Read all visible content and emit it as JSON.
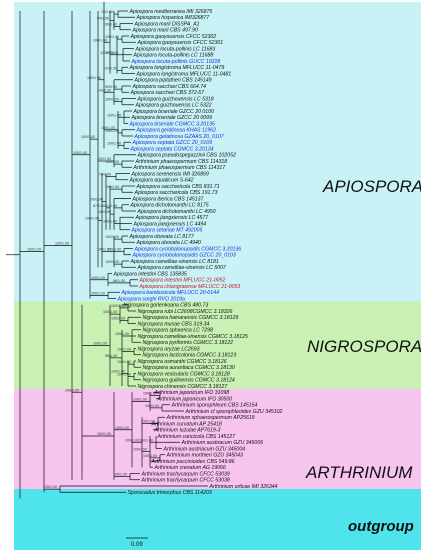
{
  "clades": {
    "apiospora": "APIOSPORA",
    "nigrospora": "NIGROSPORA",
    "arthrinium": "ARTHRINIUM",
    "outgroup": "outgroup"
  },
  "colors": {
    "apiospora_band": "#c8f2f6",
    "nigrospora_band": "#c9f1b4",
    "arthrinium_band": "#f7c3ef",
    "outgroup_band": "#4fe3ec",
    "new_taxa_blue": "#1a2fd6",
    "new_taxa_red": "#c4161c",
    "black": "#111111"
  },
  "scale_bar": "0.09",
  "taxa": [
    {
      "name": "Apiospora mediterranea IMI 326875",
      "color": "black"
    },
    {
      "name": "Apiospora hispanica IMI326877",
      "color": "black"
    },
    {
      "name": "Apiospora marii DiSSPA_A1",
      "color": "black"
    },
    {
      "name": "Apiospora marii CBS 497.90",
      "color": "black"
    },
    {
      "name": "Apiospora gaoyouensis CFCC 52302",
      "color": "black"
    },
    {
      "name": "Apiospora gaoyouensis CFCC 52301",
      "color": "black"
    },
    {
      "name": "Apiospora locuta-pollinis LC 11683",
      "color": "black"
    },
    {
      "name": "Apiospora locuta-pollinis LC 11688",
      "color": "black"
    },
    {
      "name": "Apiospora locuta-pollinis GUCC 10228",
      "color": "blue"
    },
    {
      "name": "Apiospora longistroma MFLUCC 11-0479",
      "color": "black"
    },
    {
      "name": "Apiospora longistroma MFLUCC 11-0481",
      "color": "black"
    },
    {
      "name": "Apiospora piptatheri CBS 145149",
      "color": "black"
    },
    {
      "name": "Apiospora sacchari CBS 664.74",
      "color": "black"
    },
    {
      "name": "Apiospora sacchari CBS 372.67",
      "color": "black"
    },
    {
      "name": "Apiospora guizhouensis LC 5318",
      "color": "black"
    },
    {
      "name": "Apiospora guizhouensis LC 5322",
      "color": "black"
    },
    {
      "name": "Apiospora biseriale GZCC 20 0100",
      "color": "black"
    },
    {
      "name": "Apiospora biseriale GZCC 20 0099",
      "color": "black"
    },
    {
      "name": "Apiospora biseriale CGMCC 3.20135",
      "color": "blue"
    },
    {
      "name": "Apiospora gelatinosa KHAS 11962",
      "color": "blue"
    },
    {
      "name": "Apiospora gelatinosa GZAAS 20_0107",
      "color": "blue"
    },
    {
      "name": "Apiospora septata GZCC 20_0109",
      "color": "blue"
    },
    {
      "name": "Apiospora septata CGMCC 3.20134",
      "color": "blue"
    },
    {
      "name": "Apiospora pseudospegazzinii CBS 102052",
      "color": "black"
    },
    {
      "name": "Arthrinium phaeospermum CBS 114318",
      "color": "black"
    },
    {
      "name": "Arthrinium phaeospermum CBS 114317",
      "color": "black"
    },
    {
      "name": "Apiospora serenensis IMI 326869",
      "color": "black"
    },
    {
      "name": "Apiospora aquaticum S-642",
      "color": "black"
    },
    {
      "name": "Apiospora saccharicola CBS 831.71",
      "color": "black"
    },
    {
      "name": "Apiospora saccharicola CBS 191.73",
      "color": "black"
    },
    {
      "name": "Apiospora iberica CBS 145137",
      "color": "black"
    },
    {
      "name": "Apiospora dichotomanthi LC 8175",
      "color": "black"
    },
    {
      "name": "Apiospora dichotomanthi LC 4950",
      "color": "black"
    },
    {
      "name": "Apiospora jiangxiensis LC 4577",
      "color": "black"
    },
    {
      "name": "Apiospora jiangxiensis LC 4494",
      "color": "black"
    },
    {
      "name": "Apiospora setariae MT 492005",
      "color": "blue"
    },
    {
      "name": "Apiospora obovata LC 8177",
      "color": "black"
    },
    {
      "name": "Apiospora obovata LC 4940",
      "color": "black"
    },
    {
      "name": "Apiospora cyclobalanopsidis CGMCC 3.20136",
      "color": "blue"
    },
    {
      "name": "Apiospora cyclobalanopsidis GZCC 20_0103",
      "color": "blue"
    },
    {
      "name": "Apiospora camelliae-sinensis LC 8181",
      "color": "black"
    },
    {
      "name": "Apiospora camelliae-sinensis LC 5007",
      "color": "black"
    },
    {
      "name": "Apiospora intestini CBS 135835",
      "color": "black"
    },
    {
      "name": "Apiospora intestini MFLUCC 21-0052",
      "color": "red"
    },
    {
      "name": "Apiospora chiangraiense MFLUCC 21-0053",
      "color": "red"
    },
    {
      "name": "Apiospora bambusicola MFLUCC 20-0144",
      "color": "blue"
    },
    {
      "name": "Apiospora sorghi RVO 2019a",
      "color": "blue"
    },
    {
      "name": "Nigrospora gorlenkoana CBS 480.73",
      "color": "black"
    },
    {
      "name": "Nigrospora rubi LC2698CGMCC 3.18326",
      "color": "black"
    },
    {
      "name": "Nigrospora hainanensis CGMCC 3.18129",
      "color": "black"
    },
    {
      "name": "Nigrospora musae CBS 319.34",
      "color": "black"
    },
    {
      "name": "Nigrospora sphaerica LC 7298",
      "color": "black"
    },
    {
      "name": "Nigrospora camelliae-sinensis CGMCC 3.18125",
      "color": "black"
    },
    {
      "name": "Nigrospora pyriformis CGMCC 3.18122",
      "color": "black"
    },
    {
      "name": "Nigrospora oryzae LC2693",
      "color": "black"
    },
    {
      "name": "Nigrospora lacticolonia CGMCC 3.18123",
      "color": "black"
    },
    {
      "name": "Nigrospora osmanthi CGMCC 3.18126",
      "color": "black"
    },
    {
      "name": "Nigrospora aurantiaca CGMCC 3.18130",
      "color": "black"
    },
    {
      "name": "Nigrospora vesicularis CGMCC 3.18128",
      "color": "black"
    },
    {
      "name": "Nigrospora guilinensis CGMCC 3.18124",
      "color": "black"
    },
    {
      "name": "Nigrospora chinensis CGMCC 3.18127",
      "color": "black"
    },
    {
      "name": "Arthrinium japonicum IFO 31098",
      "color": "black"
    },
    {
      "name": "Arthrinium japonicum IFO 30500",
      "color": "black"
    },
    {
      "name": "Arthrinium sporophleum CBS 145154",
      "color": "black"
    },
    {
      "name": "Arthrinium cf sporophleoides GZU 345102",
      "color": "black"
    },
    {
      "name": "Arthrinium sphaerospermum AP25619",
      "color": "black"
    },
    {
      "name": "Arthrinium curvatum AP 25418",
      "color": "black"
    },
    {
      "name": "Arthrinium luzulae AP7619-3",
      "color": "black"
    },
    {
      "name": "Arthrinium caricicola CBS 145127",
      "color": "black"
    },
    {
      "name": "Arthrinium austriacum GZU 345006",
      "color": "black"
    },
    {
      "name": "Arthrinium austriacum GZU 345004",
      "color": "black"
    },
    {
      "name": "Arthrinium morthieri GZU 345043",
      "color": "black"
    },
    {
      "name": "Arthrinium puccinioides CBS 549.86",
      "color": "black"
    },
    {
      "name": "Arthrinium crenatum AG 19066",
      "color": "black"
    },
    {
      "name": "Arthrinium trachycarpum CFCC 53039",
      "color": "black"
    },
    {
      "name": "Arthrinium trachycarpum CFCC 53038",
      "color": "black"
    },
    {
      "name": "Arthrinium urticae IMI 326344",
      "color": "black"
    },
    {
      "name": "Sporocadus trimorphus CBS 114203",
      "color": "black"
    }
  ],
  "supports": [
    "78/1.00",
    "100/1.00",
    "94/1.00",
    "100/1.00",
    "99/1.00",
    "97/1.00",
    "100/1.00",
    "100/1.00",
    "99/0.99",
    "100/1.00",
    "100/1.00",
    "100/1.00",
    "100/1.00",
    "100/1.00",
    "100/1.00",
    "100/1.00",
    "100/1.00",
    "100/1.00",
    "78/1.00",
    "100/1.00",
    "81/0.99",
    "100/1.00",
    "100/1.00",
    "87/1.00",
    "100/1.00",
    "100/1.00",
    "100/1.00",
    "100/1.00",
    "100/1.00",
    "100/1.00",
    "100/1.00",
    "86/1.00",
    "100/1.00",
    "100/1.00",
    "100/1.00",
    "100/1.00",
    "100/1.00",
    "100/1.00",
    "100/1.00",
    "100/1.00",
    "100/1.00",
    "100/1.00",
    "100/1.00",
    "98/1.00",
    "100/1.00",
    "100/1.00",
    "100/1.00",
    "100/1.00",
    "100/1.00",
    "100/1.00",
    "100/1.00",
    "100/1.00",
    "100/1.00",
    "100/1.00",
    "100/1.00",
    "100/1.00",
    "100/1.00",
    "100/1.00",
    "100/1.00",
    "100/1.00"
  ]
}
